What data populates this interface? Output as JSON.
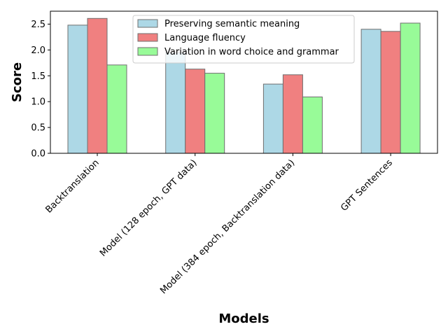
{
  "chart_data": {
    "type": "bar",
    "title": "",
    "xlabel": "Models",
    "ylabel": "Score",
    "categories": [
      "Backtranslation",
      "Model (128 epoch, GPT data)",
      "Model (384 epoch, Backtranslation data)",
      "GPT Sentences"
    ],
    "series": [
      {
        "name": "Preserving semantic meaning",
        "color": "#add8e6",
        "values": [
          2.48,
          1.95,
          1.34,
          2.4
        ]
      },
      {
        "name": "Language fluency",
        "color": "#f08080",
        "values": [
          2.61,
          1.63,
          1.52,
          2.36
        ]
      },
      {
        "name": "Variation in word choice and grammar",
        "color": "#98fb98",
        "values": [
          1.71,
          1.55,
          1.09,
          2.52
        ]
      }
    ],
    "ylim": [
      0,
      2.75
    ],
    "yticks": [
      "0.0",
      "0.5",
      "1.0",
      "1.5",
      "2.0",
      "2.5"
    ],
    "legend_position": "top-center",
    "grid": false
  }
}
